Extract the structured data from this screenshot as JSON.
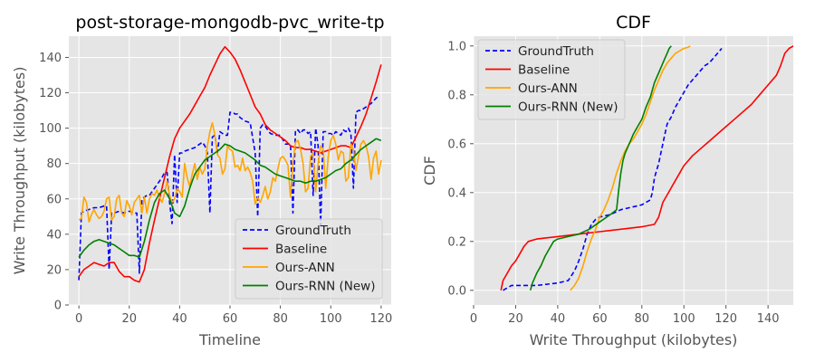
{
  "chart_data": [
    {
      "type": "line",
      "title": "post-storage-mongodb-pvc_write-tp",
      "xlabel": "Timeline",
      "ylabel": "Write Throughput (kilobytes)",
      "xlim": [
        -4,
        124
      ],
      "ylim": [
        0,
        152
      ],
      "xticks": [
        0,
        20,
        40,
        60,
        80,
        100,
        120
      ],
      "yticks": [
        0,
        20,
        40,
        60,
        80,
        100,
        120,
        140
      ],
      "grid": true,
      "legend_position": "lower-right",
      "series": [
        {
          "name": "GroundTruth",
          "color": "#0000ff",
          "dash": true,
          "x": [
            0,
            1,
            2,
            4,
            6,
            8,
            10,
            11,
            12,
            13,
            14,
            16,
            18,
            20,
            22,
            23,
            24,
            25,
            26,
            27,
            28,
            29,
            30,
            31,
            32,
            33,
            34,
            35,
            36,
            37,
            38,
            39,
            40,
            41,
            42,
            44,
            46,
            47,
            48,
            49,
            50,
            51,
            52,
            53,
            54,
            55,
            56,
            57,
            58,
            59,
            60,
            61,
            62,
            63,
            64,
            66,
            68,
            70,
            71,
            72,
            73,
            74,
            76,
            78,
            80,
            82,
            84,
            85,
            86,
            87,
            88,
            89,
            90,
            91,
            92,
            93,
            94,
            95,
            96,
            97,
            98,
            99,
            100,
            101,
            102,
            103,
            104,
            105,
            106,
            107,
            108,
            109,
            110,
            111,
            112,
            113,
            114,
            116,
            118,
            119
          ],
          "y": [
            14,
            52,
            53,
            54,
            55,
            55,
            56,
            56,
            20,
            52,
            52,
            53,
            52,
            53,
            52,
            52,
            18,
            60,
            61,
            62,
            62,
            64,
            66,
            68,
            70,
            72,
            75,
            75,
            58,
            46,
            85,
            58,
            86,
            86,
            87,
            88,
            89,
            90,
            91,
            92,
            90,
            86,
            52,
            95,
            96,
            86,
            98,
            97,
            96,
            96,
            109,
            109,
            108,
            108,
            106,
            104,
            103,
            86,
            50,
            100,
            102,
            101,
            97,
            96,
            96,
            91,
            91,
            52,
            99,
            99,
            97,
            99,
            99,
            97,
            98,
            62,
            100,
            90,
            45,
            98,
            98,
            97,
            97,
            96,
            98,
            97,
            96,
            99,
            98,
            100,
            97,
            66,
            109,
            110,
            110,
            111,
            112,
            114,
            117,
            118
          ]
        },
        {
          "name": "Baseline",
          "color": "#ff0000",
          "dash": false,
          "x": [
            0,
            2,
            4,
            6,
            8,
            10,
            12,
            14,
            16,
            18,
            20,
            22,
            24,
            26,
            28,
            30,
            32,
            34,
            36,
            38,
            40,
            42,
            44,
            46,
            48,
            50,
            52,
            54,
            56,
            58,
            60,
            62,
            64,
            66,
            68,
            70,
            72,
            74,
            76,
            78,
            80,
            82,
            84,
            86,
            88,
            90,
            92,
            94,
            96,
            98,
            100,
            102,
            104,
            106,
            108,
            110,
            112,
            114,
            116,
            118,
            120
          ],
          "y": [
            16,
            20,
            22,
            24,
            23,
            22,
            24,
            24,
            19,
            16,
            16,
            14,
            13,
            20,
            35,
            48,
            60,
            72,
            84,
            94,
            100,
            104,
            108,
            113,
            118,
            123,
            130,
            136,
            142,
            146,
            143,
            139,
            133,
            126,
            119,
            112,
            108,
            102,
            99,
            97,
            95,
            93,
            90,
            89,
            89,
            88,
            88,
            87,
            86,
            87,
            88,
            89,
            90,
            90,
            89,
            95,
            101,
            108,
            117,
            126,
            136
          ]
        },
        {
          "name": "Ours-ANN",
          "color": "#ffa500",
          "dash": false,
          "x": [
            0,
            1,
            2,
            3,
            4,
            5,
            6,
            7,
            8,
            9,
            10,
            11,
            12,
            13,
            14,
            15,
            16,
            17,
            18,
            19,
            20,
            21,
            22,
            23,
            24,
            25,
            26,
            27,
            28,
            29,
            30,
            31,
            32,
            33,
            34,
            35,
            36,
            37,
            38,
            39,
            40,
            41,
            42,
            43,
            44,
            45,
            46,
            47,
            48,
            49,
            50,
            51,
            52,
            53,
            54,
            55,
            56,
            57,
            58,
            59,
            60,
            61,
            62,
            63,
            64,
            65,
            66,
            67,
            68,
            69,
            70,
            71,
            72,
            73,
            74,
            75,
            76,
            77,
            78,
            79,
            80,
            81,
            82,
            83,
            84,
            85,
            86,
            87,
            88,
            89,
            90,
            91,
            92,
            93,
            94,
            95,
            96,
            97,
            98,
            99,
            100,
            101,
            102,
            103,
            104,
            105,
            106,
            107,
            108,
            109,
            110,
            111,
            112,
            113,
            114,
            115,
            116,
            117,
            118,
            119,
            120
          ],
          "y": [
            48,
            49,
            61,
            58,
            47,
            51,
            54,
            51,
            49,
            50,
            53,
            60,
            61,
            48,
            50,
            60,
            62,
            52,
            50,
            59,
            56,
            51,
            58,
            60,
            62,
            52,
            61,
            52,
            60,
            63,
            62,
            65,
            61,
            58,
            63,
            70,
            62,
            58,
            60,
            66,
            64,
            61,
            80,
            72,
            67,
            74,
            80,
            71,
            78,
            74,
            77,
            90,
            98,
            103,
            96,
            85,
            83,
            74,
            77,
            90,
            88,
            87,
            78,
            79,
            76,
            83,
            76,
            78,
            75,
            70,
            57,
            61,
            58,
            62,
            67,
            60,
            64,
            72,
            70,
            77,
            83,
            84,
            82,
            79,
            61,
            80,
            92,
            93,
            88,
            80,
            64,
            66,
            84,
            86,
            64,
            80,
            90,
            88,
            66,
            84,
            93,
            96,
            91,
            82,
            87,
            86,
            70,
            72,
            91,
            88,
            76,
            84,
            91,
            93,
            90,
            84,
            71,
            83,
            87,
            74,
            82
          ]
        },
        {
          "name": "Ours-RNN (New)",
          "color": "#008000",
          "dash": false,
          "x": [
            0,
            2,
            4,
            6,
            8,
            10,
            12,
            14,
            16,
            18,
            20,
            22,
            24,
            26,
            28,
            30,
            32,
            34,
            36,
            38,
            40,
            42,
            44,
            46,
            48,
            50,
            52,
            54,
            56,
            58,
            60,
            62,
            64,
            66,
            68,
            70,
            72,
            74,
            76,
            78,
            80,
            82,
            84,
            86,
            88,
            90,
            92,
            94,
            96,
            98,
            100,
            102,
            104,
            106,
            108,
            110,
            112,
            114,
            116,
            118,
            120
          ],
          "y": [
            27,
            31,
            34,
            36,
            37,
            36,
            35,
            34,
            32,
            30,
            28,
            28,
            27,
            36,
            48,
            58,
            63,
            65,
            60,
            52,
            50,
            56,
            66,
            74,
            78,
            82,
            84,
            86,
            88,
            91,
            90,
            88,
            87,
            86,
            84,
            82,
            79,
            78,
            76,
            74,
            73,
            72,
            71,
            70,
            70,
            69,
            70,
            70,
            71,
            72,
            74,
            76,
            77,
            80,
            82,
            85,
            88,
            90,
            92,
            94,
            93
          ]
        }
      ]
    },
    {
      "type": "line",
      "title": "CDF",
      "xlabel": "Write Throughput (kilobytes)",
      "ylabel": "CDF",
      "xlim": [
        0,
        152
      ],
      "ylim": [
        -0.06,
        1.04
      ],
      "xticks": [
        0,
        20,
        40,
        60,
        80,
        100,
        120,
        140
      ],
      "yticks": [
        0.0,
        0.2,
        0.4,
        0.6,
        0.8,
        1.0
      ],
      "grid": true,
      "legend_position": "upper-left",
      "series": [
        {
          "name": "GroundTruth",
          "color": "#0000ff",
          "dash": true,
          "x": [
            14,
            18,
            20,
            30,
            40,
            45,
            48,
            50,
            52,
            53,
            54,
            55,
            56,
            58,
            60,
            65,
            70,
            75,
            80,
            82,
            84,
            85,
            86,
            88,
            89,
            90,
            91,
            92,
            94,
            96,
            98,
            100,
            102,
            104,
            106,
            108,
            110,
            112,
            114,
            116,
            118
          ],
          "y": [
            0.0,
            0.02,
            0.02,
            0.02,
            0.03,
            0.04,
            0.08,
            0.12,
            0.17,
            0.2,
            0.23,
            0.25,
            0.27,
            0.29,
            0.3,
            0.31,
            0.33,
            0.34,
            0.35,
            0.36,
            0.37,
            0.4,
            0.46,
            0.52,
            0.56,
            0.6,
            0.64,
            0.68,
            0.71,
            0.75,
            0.78,
            0.81,
            0.84,
            0.86,
            0.88,
            0.9,
            0.92,
            0.93,
            0.95,
            0.97,
            0.99
          ]
        },
        {
          "name": "Baseline",
          "color": "#ff0000",
          "dash": false,
          "x": [
            13,
            14,
            16,
            18,
            20,
            22,
            24,
            25,
            26,
            30,
            40,
            50,
            60,
            70,
            80,
            86,
            88,
            89,
            90,
            92,
            94,
            96,
            98,
            100,
            104,
            108,
            112,
            116,
            120,
            124,
            128,
            132,
            136,
            140,
            144,
            146,
            148,
            150,
            152
          ],
          "y": [
            0.0,
            0.04,
            0.07,
            0.1,
            0.12,
            0.15,
            0.18,
            0.19,
            0.2,
            0.21,
            0.22,
            0.23,
            0.24,
            0.25,
            0.26,
            0.27,
            0.3,
            0.33,
            0.36,
            0.39,
            0.42,
            0.45,
            0.48,
            0.51,
            0.55,
            0.58,
            0.61,
            0.64,
            0.67,
            0.7,
            0.73,
            0.76,
            0.8,
            0.84,
            0.88,
            0.92,
            0.97,
            0.99,
            1.0
          ]
        },
        {
          "name": "Ours-ANN",
          "color": "#ffa500",
          "dash": false,
          "x": [
            46,
            48,
            50,
            52,
            54,
            56,
            58,
            60,
            62,
            64,
            66,
            68,
            70,
            72,
            74,
            76,
            78,
            80,
            82,
            84,
            86,
            88,
            90,
            92,
            94,
            96,
            98,
            100,
            102,
            103
          ],
          "y": [
            0.0,
            0.02,
            0.05,
            0.1,
            0.16,
            0.21,
            0.25,
            0.3,
            0.33,
            0.37,
            0.42,
            0.48,
            0.53,
            0.57,
            0.6,
            0.62,
            0.65,
            0.68,
            0.72,
            0.77,
            0.82,
            0.86,
            0.9,
            0.93,
            0.95,
            0.97,
            0.98,
            0.99,
            0.995,
            1.0
          ]
        },
        {
          "name": "Ours-RNN (New)",
          "color": "#008000",
          "dash": false,
          "x": [
            27,
            28,
            30,
            32,
            34,
            36,
            38,
            40,
            45,
            50,
            55,
            60,
            65,
            68,
            69,
            70,
            71,
            72,
            74,
            76,
            78,
            80,
            82,
            84,
            86,
            88,
            90,
            91,
            92,
            93,
            94
          ],
          "y": [
            0.0,
            0.03,
            0.07,
            0.1,
            0.14,
            0.17,
            0.2,
            0.21,
            0.22,
            0.23,
            0.25,
            0.28,
            0.31,
            0.33,
            0.41,
            0.48,
            0.53,
            0.56,
            0.6,
            0.64,
            0.67,
            0.7,
            0.75,
            0.79,
            0.85,
            0.89,
            0.93,
            0.95,
            0.97,
            0.99,
            1.0
          ]
        }
      ]
    }
  ]
}
